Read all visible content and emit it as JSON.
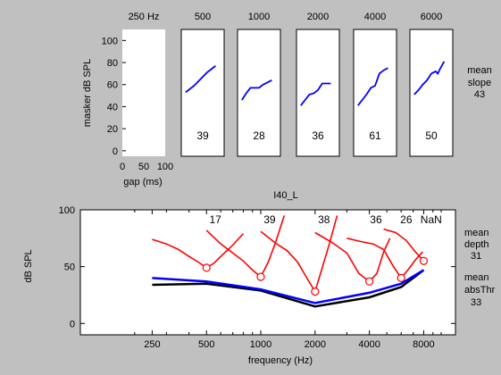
{
  "colors": {
    "figure_bg": "#c0c0c0",
    "axes_bg": "#ffffff",
    "blue": "#0000ff",
    "red": "#ff0000",
    "black": "#000000"
  },
  "chart_data": [
    {
      "type": "line",
      "title": "",
      "panel_titles": [
        "250 Hz",
        "500",
        "1000",
        "2000",
        "4000",
        "6000"
      ],
      "ylabel": "masker dB SPL",
      "xlabel": "gap (ms)",
      "xlim": [
        0,
        100
      ],
      "ylim": [
        -5,
        110
      ],
      "xticks": [
        0,
        50,
        100
      ],
      "yticks": [
        0,
        20,
        40,
        60,
        80,
        100
      ],
      "slopes": [
        "",
        "39",
        "28",
        "36",
        "61",
        "50"
      ],
      "series": [
        {
          "values": []
        },
        {
          "x": [
            10,
            20,
            30,
            40,
            50,
            60,
            70,
            80
          ],
          "values": [
            53,
            56,
            59,
            63,
            67,
            71,
            74,
            77
          ]
        },
        {
          "x": [
            10,
            20,
            30,
            40,
            50,
            60,
            70,
            80
          ],
          "values": [
            46,
            52,
            57,
            57,
            57,
            60,
            62,
            64
          ]
        },
        {
          "x": [
            10,
            20,
            30,
            40,
            50,
            60,
            70,
            80
          ],
          "values": [
            41,
            46,
            51,
            52,
            55,
            61,
            61,
            61
          ]
        },
        {
          "x": [
            10,
            20,
            30,
            40,
            50,
            60,
            70,
            80
          ],
          "values": [
            41,
            46,
            51,
            57,
            59,
            70,
            73,
            75
          ]
        },
        {
          "x": [
            10,
            20,
            30,
            40,
            50,
            60,
            65,
            70,
            80
          ],
          "values": [
            51,
            55,
            60,
            64,
            70,
            72,
            70,
            74,
            81
          ]
        }
      ],
      "side_label": [
        "mean",
        "slope",
        "43"
      ]
    },
    {
      "type": "line",
      "title": "I40_L",
      "xlabel": "frequency (Hz)",
      "ylabel": "dB SPL",
      "xscale": "log",
      "xlim": [
        100,
        12000
      ],
      "ylim": [
        -10,
        100
      ],
      "xticks": [
        250,
        500,
        1000,
        2000,
        4000,
        8000
      ],
      "yticks": [
        0,
        50,
        100
      ],
      "minor_xticks": [
        200,
        300,
        400,
        600,
        700,
        800,
        900,
        3000,
        5000,
        6000,
        7000,
        9000,
        10000
      ],
      "threshold_black": {
        "x": [
          250,
          500,
          1000,
          2000,
          4000,
          6000,
          8000
        ],
        "values": [
          34,
          35,
          29,
          15,
          23,
          32,
          47
        ]
      },
      "threshold_blue": {
        "x": [
          250,
          500,
          1000,
          2000,
          4000,
          6000,
          8000
        ],
        "values": [
          40,
          37,
          30,
          18,
          27,
          35,
          47
        ]
      },
      "tuning_curves": [
        {
          "probe_freq": 500,
          "probe_level": 49,
          "x": [
            250,
            300,
            350,
            400,
            450,
            500,
            550,
            600,
            700,
            800
          ],
          "values": [
            74,
            70,
            65,
            59,
            54,
            49,
            53,
            59,
            69,
            79
          ]
        },
        {
          "probe_freq": 1000,
          "probe_level": 41,
          "x": [
            500,
            600,
            700,
            800,
            900,
            1000,
            1100,
            1200,
            1350
          ],
          "values": [
            82,
            70,
            62,
            55,
            47,
            41,
            54,
            70,
            95
          ]
        },
        {
          "probe_freq": 2000,
          "probe_level": 28,
          "x": [
            1000,
            1200,
            1400,
            1600,
            1800,
            2000,
            2200,
            2400,
            2650
          ],
          "values": [
            81,
            71,
            64,
            54,
            40,
            28,
            50,
            70,
            95
          ]
        },
        {
          "probe_freq": 4000,
          "probe_level": 37,
          "x": [
            2000,
            2500,
            3000,
            3500,
            4000,
            4400,
            4800,
            5200
          ],
          "values": [
            80,
            71,
            62,
            44,
            37,
            44,
            63,
            75
          ]
        },
        {
          "probe_freq": 6000,
          "probe_level": 40,
          "x": [
            3000,
            3600,
            4200,
            4800,
            5400,
            6000,
            6600,
            7200,
            7900
          ],
          "values": [
            75,
            72,
            70,
            65,
            51,
            40,
            48,
            56,
            63
          ]
        },
        {
          "probe_freq": 8000,
          "probe_level": 55,
          "x": [
            4800,
            5600,
            6400,
            7200,
            8000
          ],
          "values": [
            83,
            80,
            73,
            63,
            55
          ]
        }
      ],
      "curve_labels": [
        "17",
        "39",
        "38",
        "36",
        "26",
        "NaN"
      ],
      "side_labels": [
        [
          "mean",
          "depth",
          "31"
        ],
        [
          "mean",
          "absThr",
          "33"
        ]
      ]
    }
  ]
}
